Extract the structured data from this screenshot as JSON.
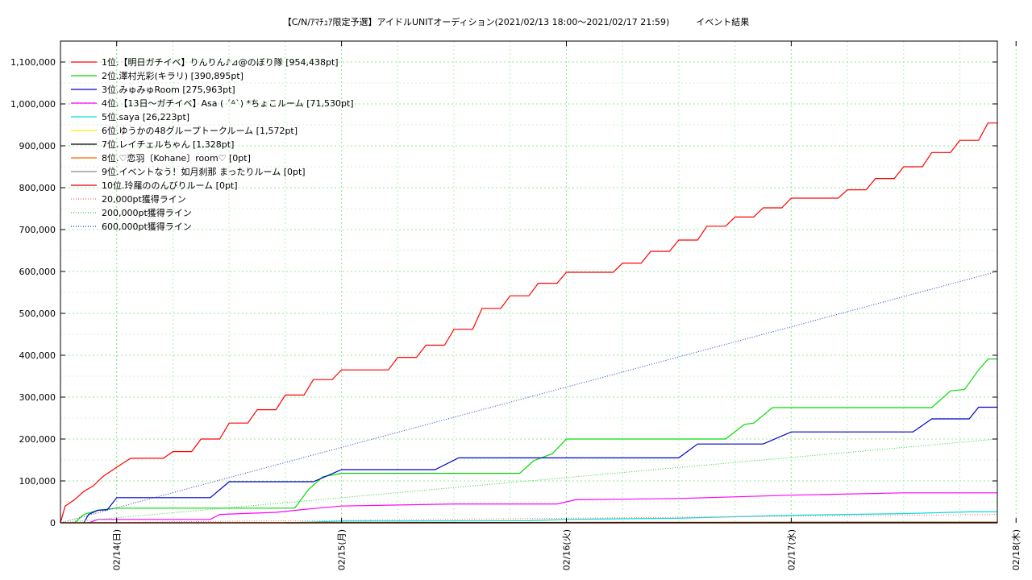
{
  "chart_data": {
    "type": "line",
    "title": "【C/N/ｱﾏﾁｭｱ限定予選】アイドルUNITオーディション(2021/02/13 18:00～2021/02/17 21:59)　　　イベント結果",
    "xlabel": "",
    "ylabel": "",
    "x_range": [
      "2021-02-13 18:00",
      "2021-02-17 22:00"
    ],
    "ylim": [
      0,
      1150000
    ],
    "yticks": [
      0,
      100000,
      200000,
      300000,
      400000,
      500000,
      600000,
      700000,
      800000,
      900000,
      1000000,
      1100000
    ],
    "ytick_labels": [
      "0",
      "100,000",
      "200,000",
      "300,000",
      "400,000",
      "500,000",
      "600,000",
      "700,000",
      "800,000",
      "900,000",
      "1,000,000",
      "1,100,000"
    ],
    "xticks": [
      "2021-02-14 00:00",
      "2021-02-15 00:00",
      "2021-02-16 00:00",
      "2021-02-17 00:00",
      "2021-02-18 00:00"
    ],
    "xtick_labels": [
      "02/14(日)",
      "02/15(月)",
      "02/16(火)",
      "02/17(水)",
      "02/18(木)"
    ],
    "grid": true,
    "legend_position": "top-left",
    "series": [
      {
        "name": "1位.【明日ガチイベ】りんりん♪⊿@のぼり隊 [954,438pt]",
        "color": "#ff0000",
        "style": "solid",
        "points": [
          [
            "2021-02-13 18:00",
            0
          ],
          [
            "2021-02-13 18:30",
            40000
          ],
          [
            "2021-02-13 19:30",
            55000
          ],
          [
            "2021-02-13 20:30",
            75000
          ],
          [
            "2021-02-13 21:30",
            88000
          ],
          [
            "2021-02-13 22:30",
            110000
          ],
          [
            "2021-02-13 23:30",
            125000
          ],
          [
            "2021-02-14 00:30",
            140000
          ],
          [
            "2021-02-14 01:30",
            154000
          ],
          [
            "2021-02-14 05:00",
            154000
          ],
          [
            "2021-02-14 06:00",
            170000
          ],
          [
            "2021-02-14 08:00",
            170000
          ],
          [
            "2021-02-14 09:00",
            200000
          ],
          [
            "2021-02-14 11:00",
            200000
          ],
          [
            "2021-02-14 12:00",
            238000
          ],
          [
            "2021-02-14 14:00",
            238000
          ],
          [
            "2021-02-14 15:00",
            270000
          ],
          [
            "2021-02-14 17:00",
            270000
          ],
          [
            "2021-02-14 18:00",
            305000
          ],
          [
            "2021-02-14 20:00",
            305000
          ],
          [
            "2021-02-14 21:00",
            342000
          ],
          [
            "2021-02-14 23:00",
            342000
          ],
          [
            "2021-02-15 00:00",
            365000
          ],
          [
            "2021-02-15 05:00",
            365000
          ],
          [
            "2021-02-15 06:00",
            395000
          ],
          [
            "2021-02-15 08:00",
            395000
          ],
          [
            "2021-02-15 09:00",
            424000
          ],
          [
            "2021-02-15 11:00",
            424000
          ],
          [
            "2021-02-15 12:00",
            462000
          ],
          [
            "2021-02-15 14:00",
            462000
          ],
          [
            "2021-02-15 15:00",
            512000
          ],
          [
            "2021-02-15 17:00",
            512000
          ],
          [
            "2021-02-15 18:00",
            542000
          ],
          [
            "2021-02-15 20:00",
            542000
          ],
          [
            "2021-02-15 21:00",
            572000
          ],
          [
            "2021-02-15 23:00",
            572000
          ],
          [
            "2021-02-16 00:00",
            598000
          ],
          [
            "2021-02-16 05:00",
            598000
          ],
          [
            "2021-02-16 06:00",
            620000
          ],
          [
            "2021-02-16 08:00",
            620000
          ],
          [
            "2021-02-16 09:00",
            648000
          ],
          [
            "2021-02-16 11:00",
            648000
          ],
          [
            "2021-02-16 12:00",
            675000
          ],
          [
            "2021-02-16 14:00",
            675000
          ],
          [
            "2021-02-16 15:00",
            708000
          ],
          [
            "2021-02-16 17:00",
            708000
          ],
          [
            "2021-02-16 18:00",
            730000
          ],
          [
            "2021-02-16 20:00",
            730000
          ],
          [
            "2021-02-16 21:00",
            752000
          ],
          [
            "2021-02-16 23:00",
            752000
          ],
          [
            "2021-02-17 00:00",
            775000
          ],
          [
            "2021-02-17 05:00",
            775000
          ],
          [
            "2021-02-17 06:00",
            795000
          ],
          [
            "2021-02-17 08:00",
            795000
          ],
          [
            "2021-02-17 09:00",
            822000
          ],
          [
            "2021-02-17 11:00",
            822000
          ],
          [
            "2021-02-17 12:00",
            850000
          ],
          [
            "2021-02-17 14:00",
            850000
          ],
          [
            "2021-02-17 15:00",
            884000
          ],
          [
            "2021-02-17 17:00",
            884000
          ],
          [
            "2021-02-17 18:00",
            913000
          ],
          [
            "2021-02-17 20:00",
            913000
          ],
          [
            "2021-02-17 21:00",
            954438
          ],
          [
            "2021-02-17 22:00",
            954438
          ]
        ]
      },
      {
        "name": "2位.澤村光彩(キラリ) [390,895pt]",
        "color": "#00dd00",
        "style": "solid",
        "points": [
          [
            "2021-02-13 19:30",
            0
          ],
          [
            "2021-02-13 20:30",
            20000
          ],
          [
            "2021-02-13 22:00",
            30000
          ],
          [
            "2021-02-14 00:00",
            35000
          ],
          [
            "2021-02-14 19:00",
            35000
          ],
          [
            "2021-02-14 20:30",
            80000
          ],
          [
            "2021-02-14 22:00",
            110000
          ],
          [
            "2021-02-15 00:00",
            118000
          ],
          [
            "2021-02-15 19:00",
            118000
          ],
          [
            "2021-02-15 20:30",
            148000
          ],
          [
            "2021-02-15 22:30",
            165000
          ],
          [
            "2021-02-16 00:00",
            200000
          ],
          [
            "2021-02-16 17:00",
            200000
          ],
          [
            "2021-02-16 19:00",
            235000
          ],
          [
            "2021-02-16 20:00",
            238000
          ],
          [
            "2021-02-16 22:00",
            275000
          ],
          [
            "2021-02-17 15:00",
            275000
          ],
          [
            "2021-02-17 17:00",
            315000
          ],
          [
            "2021-02-17 18:30",
            318000
          ],
          [
            "2021-02-17 20:00",
            365000
          ],
          [
            "2021-02-17 21:00",
            390895
          ],
          [
            "2021-02-17 22:00",
            390895
          ]
        ]
      },
      {
        "name": "3位.みゅみゅRoom [275,963pt]",
        "color": "#0000cc",
        "style": "solid",
        "points": [
          [
            "2021-02-13 20:30",
            0
          ],
          [
            "2021-02-13 21:00",
            20000
          ],
          [
            "2021-02-13 22:00",
            30000
          ],
          [
            "2021-02-13 23:00",
            31000
          ],
          [
            "2021-02-14 00:00",
            60000
          ],
          [
            "2021-02-14 10:00",
            60000
          ],
          [
            "2021-02-14 12:00",
            98000
          ],
          [
            "2021-02-14 21:00",
            98000
          ],
          [
            "2021-02-15 00:00",
            127000
          ],
          [
            "2021-02-15 10:00",
            127000
          ],
          [
            "2021-02-15 12:30",
            155000
          ],
          [
            "2021-02-16 12:00",
            155000
          ],
          [
            "2021-02-16 14:00",
            188000
          ],
          [
            "2021-02-16 21:00",
            188000
          ],
          [
            "2021-02-17 00:00",
            217000
          ],
          [
            "2021-02-17 13:00",
            217000
          ],
          [
            "2021-02-17 15:00",
            248000
          ],
          [
            "2021-02-17 19:00",
            248000
          ],
          [
            "2021-02-17 20:00",
            275963
          ],
          [
            "2021-02-17 22:00",
            275963
          ]
        ]
      },
      {
        "name": "4位.【13日～ガチイベ】Asa ( ´ᐞ`) *ちょこルーム [71,530pt]",
        "color": "#ff00ff",
        "style": "solid",
        "points": [
          [
            "2021-02-13 21:00",
            0
          ],
          [
            "2021-02-13 22:00",
            8000
          ],
          [
            "2021-02-14 10:00",
            8000
          ],
          [
            "2021-02-14 11:00",
            20000
          ],
          [
            "2021-02-14 17:00",
            25000
          ],
          [
            "2021-02-14 20:00",
            32000
          ],
          [
            "2021-02-15 00:00",
            40000
          ],
          [
            "2021-02-15 12:00",
            45000
          ],
          [
            "2021-02-15 23:00",
            45000
          ],
          [
            "2021-02-16 01:00",
            55000
          ],
          [
            "2021-02-16 12:00",
            58000
          ],
          [
            "2021-02-17 00:00",
            66000
          ],
          [
            "2021-02-17 12:00",
            71530
          ],
          [
            "2021-02-17 22:00",
            71530
          ]
        ]
      },
      {
        "name": "5位.saya [26,223pt]",
        "color": "#00dddd",
        "style": "solid",
        "points": [
          [
            "2021-02-14 18:00",
            0
          ],
          [
            "2021-02-15 00:00",
            4000
          ],
          [
            "2021-02-15 20:00",
            5000
          ],
          [
            "2021-02-16 00:00",
            8000
          ],
          [
            "2021-02-16 12:00",
            11000
          ],
          [
            "2021-02-17 00:00",
            18000
          ],
          [
            "2021-02-17 12:00",
            22000
          ],
          [
            "2021-02-17 19:00",
            26223
          ],
          [
            "2021-02-17 22:00",
            26223
          ]
        ]
      },
      {
        "name": "6位.ゆうかの48グループトークルーム [1,572pt]",
        "color": "#ffee00",
        "style": "solid",
        "points": [
          [
            "2021-02-13 18:00",
            0
          ],
          [
            "2021-02-15 00:00",
            800
          ],
          [
            "2021-02-17 22:00",
            1572
          ]
        ]
      },
      {
        "name": "7位.レイチェルちゃん [1,328pt]",
        "color": "#000000",
        "style": "solid",
        "points": [
          [
            "2021-02-14 18:00",
            0
          ],
          [
            "2021-02-15 12:00",
            800
          ],
          [
            "2021-02-17 22:00",
            1328
          ]
        ]
      },
      {
        "name": "8位.♡恋羽〔Kohane〕room♡ [0pt]",
        "color": "#ff6600",
        "style": "solid",
        "points": [
          [
            "2021-02-13 18:00",
            0
          ],
          [
            "2021-02-17 22:00",
            0
          ]
        ]
      },
      {
        "name": "9位.イベントなう！如月刹那 まったりルーム [0pt]",
        "color": "#888888",
        "style": "solid",
        "points": [
          [
            "2021-02-13 18:00",
            0
          ],
          [
            "2021-02-17 22:00",
            0
          ]
        ]
      },
      {
        "name": "10位.玲羅ののんびりルーム [0pt]",
        "color": "#dd0000",
        "style": "solid",
        "points": [
          [
            "2021-02-13 18:00",
            0
          ],
          [
            "2021-02-17 22:00",
            0
          ]
        ]
      },
      {
        "name": "20,000pt獲得ライン",
        "color": "#ff6666",
        "style": "dotted",
        "points": [
          [
            "2021-02-13 18:00",
            0
          ],
          [
            "2021-02-17 22:00",
            20000
          ]
        ]
      },
      {
        "name": "200,000pt獲得ライン",
        "color": "#33cc33",
        "style": "dotted",
        "points": [
          [
            "2021-02-13 18:00",
            0
          ],
          [
            "2021-02-17 22:00",
            200000
          ]
        ]
      },
      {
        "name": "600,000pt獲得ライン",
        "color": "#3333cc",
        "style": "dotted",
        "points": [
          [
            "2021-02-13 18:00",
            0
          ],
          [
            "2021-02-17 22:00",
            600000
          ]
        ]
      }
    ]
  }
}
